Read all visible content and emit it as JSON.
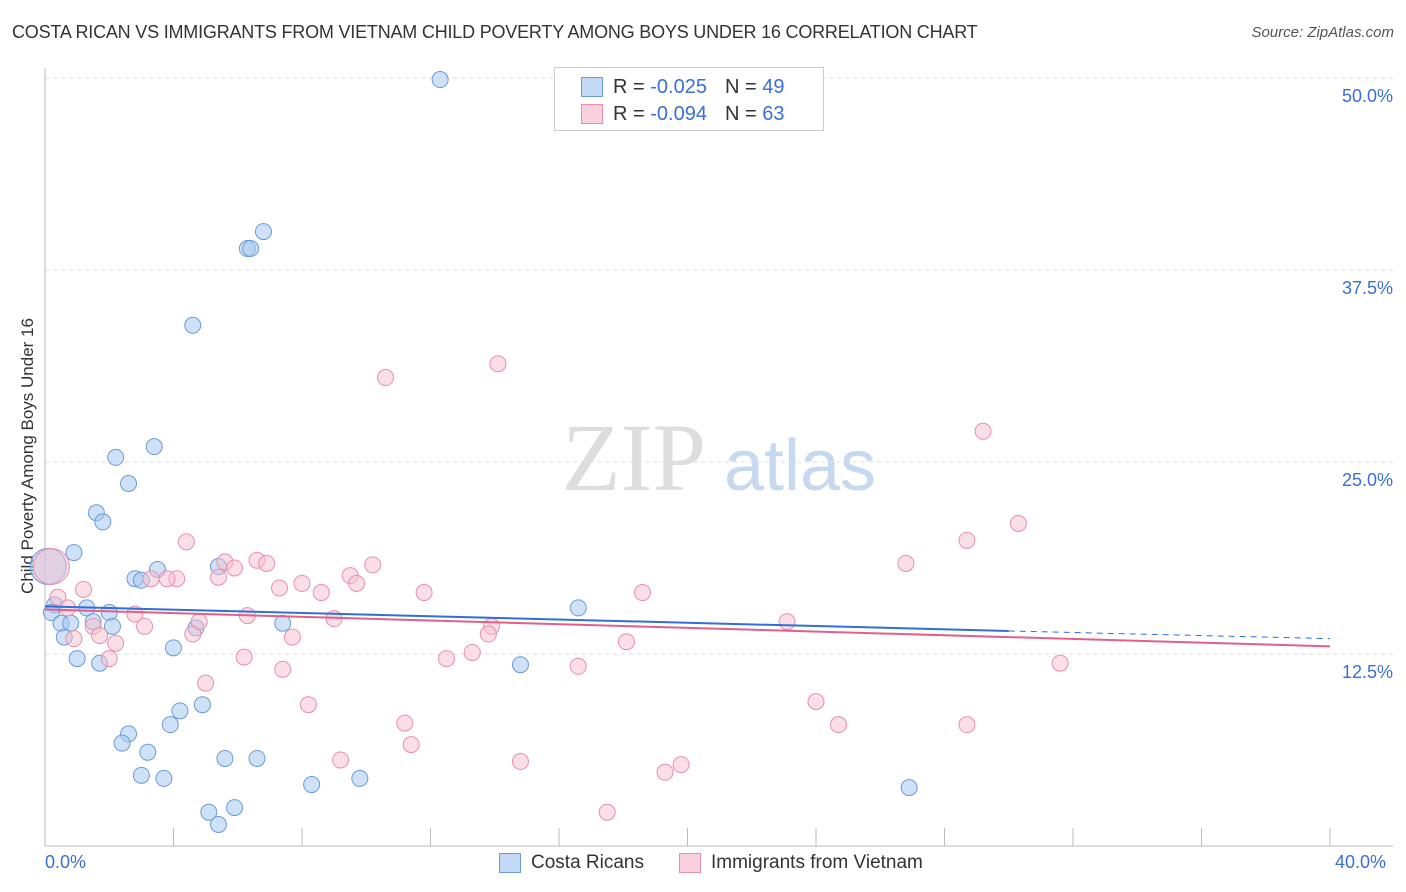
{
  "chart_data": {
    "type": "scatter",
    "title": "COSTA RICAN VS IMMIGRANTS FROM VIETNAM CHILD POVERTY AMONG BOYS UNDER 16 CORRELATION CHART",
    "source": "Source: ZipAtlas.com",
    "xlabel": "",
    "ylabel": "Child Poverty Among Boys Under 16",
    "xlim": [
      0,
      40
    ],
    "ylim": [
      0,
      50
    ],
    "x_tick_labels": [
      "0.0%",
      "40.0%"
    ],
    "y_tick_values": [
      12.5,
      25,
      37.5,
      50
    ],
    "y_tick_labels": [
      "12.5%",
      "25.0%",
      "37.5%",
      "50.0%"
    ],
    "watermark": "ZIPatlas",
    "legend": [
      {
        "name": "Costa Ricans",
        "r_label": "R =",
        "r": "-0.025",
        "n_label": "N =",
        "n": "49",
        "color": "#a8c8f0",
        "stroke": "#6b9bd8"
      },
      {
        "name": "Immigrants from Vietnam",
        "r_label": "R =",
        "r": "-0.094",
        "n_label": "N =",
        "n": "63",
        "color": "#f6bfd0",
        "stroke": "#e890ab"
      }
    ],
    "series": [
      {
        "name": "Costa Ricans",
        "line_color": "#2f6fd6",
        "trend": {
          "x0": 0,
          "y0": 15.6,
          "x1": 30,
          "y1": 14.0,
          "x2": 40,
          "y2": 13.5
        },
        "points": [
          [
            12.3,
            49.9
          ],
          [
            6.8,
            40.0
          ],
          [
            6.3,
            38.9
          ],
          [
            6.4,
            38.9
          ],
          [
            4.6,
            33.9
          ],
          [
            3.4,
            26.0
          ],
          [
            2.2,
            25.3
          ],
          [
            2.6,
            23.6
          ],
          [
            1.6,
            21.7
          ],
          [
            1.8,
            21.1
          ],
          [
            0.9,
            19.1
          ],
          [
            3.5,
            18.0
          ],
          [
            5.4,
            18.2
          ],
          [
            2.8,
            17.4
          ],
          [
            3.0,
            17.3
          ],
          [
            0.3,
            15.7
          ],
          [
            0.2,
            15.2
          ],
          [
            1.3,
            15.5
          ],
          [
            2.0,
            15.2
          ],
          [
            0.5,
            14.5
          ],
          [
            0.8,
            14.5
          ],
          [
            1.5,
            14.6
          ],
          [
            2.1,
            14.3
          ],
          [
            4.7,
            14.2
          ],
          [
            7.4,
            14.5
          ],
          [
            0.6,
            13.6
          ],
          [
            4.0,
            12.9
          ],
          [
            1.0,
            12.2
          ],
          [
            1.7,
            11.9
          ],
          [
            14.8,
            11.8
          ],
          [
            16.6,
            15.5
          ],
          [
            4.2,
            8.8
          ],
          [
            4.9,
            9.2
          ],
          [
            3.9,
            7.9
          ],
          [
            2.6,
            7.3
          ],
          [
            2.4,
            6.7
          ],
          [
            3.2,
            6.1
          ],
          [
            5.6,
            5.7
          ],
          [
            6.6,
            5.7
          ],
          [
            3.0,
            4.6
          ],
          [
            3.7,
            4.4
          ],
          [
            8.3,
            4.0
          ],
          [
            9.8,
            4.4
          ],
          [
            5.1,
            2.2
          ],
          [
            5.9,
            2.5
          ],
          [
            5.4,
            1.4
          ],
          [
            26.9,
            3.8
          ],
          [
            0.1,
            18.2,
            "big"
          ]
        ]
      },
      {
        "name": "Immigrants from Vietnam",
        "line_color": "#e0608a",
        "trend": {
          "x0": 0,
          "y0": 15.4,
          "x1": 40,
          "y1": 13.0
        },
        "points": [
          [
            14.1,
            31.4
          ],
          [
            10.6,
            30.5
          ],
          [
            29.2,
            27.0
          ],
          [
            30.3,
            21.0
          ],
          [
            28.7,
            19.9
          ],
          [
            26.8,
            18.4
          ],
          [
            4.4,
            19.8
          ],
          [
            5.6,
            18.5
          ],
          [
            6.6,
            18.6
          ],
          [
            6.9,
            18.4
          ],
          [
            5.9,
            18.1
          ],
          [
            5.4,
            17.5
          ],
          [
            10.2,
            18.3
          ],
          [
            9.5,
            17.6
          ],
          [
            9.7,
            17.1
          ],
          [
            4.1,
            17.4
          ],
          [
            3.3,
            17.4
          ],
          [
            3.8,
            17.4
          ],
          [
            1.2,
            16.7
          ],
          [
            7.3,
            16.8
          ],
          [
            8.0,
            17.1
          ],
          [
            8.6,
            16.5
          ],
          [
            11.8,
            16.5
          ],
          [
            18.6,
            16.5
          ],
          [
            0.4,
            16.2
          ],
          [
            0.7,
            15.5
          ],
          [
            2.8,
            15.1
          ],
          [
            6.3,
            15.0
          ],
          [
            9.0,
            14.8
          ],
          [
            23.1,
            14.6
          ],
          [
            1.5,
            14.3
          ],
          [
            3.1,
            14.3
          ],
          [
            4.8,
            14.6
          ],
          [
            13.9,
            14.3
          ],
          [
            13.8,
            13.8
          ],
          [
            7.7,
            13.6
          ],
          [
            4.6,
            13.8
          ],
          [
            0.9,
            13.5
          ],
          [
            2.2,
            13.2
          ],
          [
            18.1,
            13.3
          ],
          [
            1.7,
            13.7
          ],
          [
            2.0,
            12.2
          ],
          [
            6.2,
            12.3
          ],
          [
            7.4,
            11.5
          ],
          [
            12.5,
            12.2
          ],
          [
            13.3,
            12.6
          ],
          [
            16.6,
            11.7
          ],
          [
            31.6,
            11.9
          ],
          [
            5.0,
            10.6
          ],
          [
            8.2,
            9.2
          ],
          [
            24.0,
            9.4
          ],
          [
            24.7,
            7.9
          ],
          [
            28.7,
            7.9
          ],
          [
            11.2,
            8.0
          ],
          [
            11.4,
            6.6
          ],
          [
            9.2,
            5.6
          ],
          [
            14.8,
            5.5
          ],
          [
            19.8,
            5.3
          ],
          [
            19.3,
            4.8
          ],
          [
            17.5,
            2.2
          ],
          [
            0.2,
            18.2,
            "big"
          ]
        ]
      }
    ]
  }
}
